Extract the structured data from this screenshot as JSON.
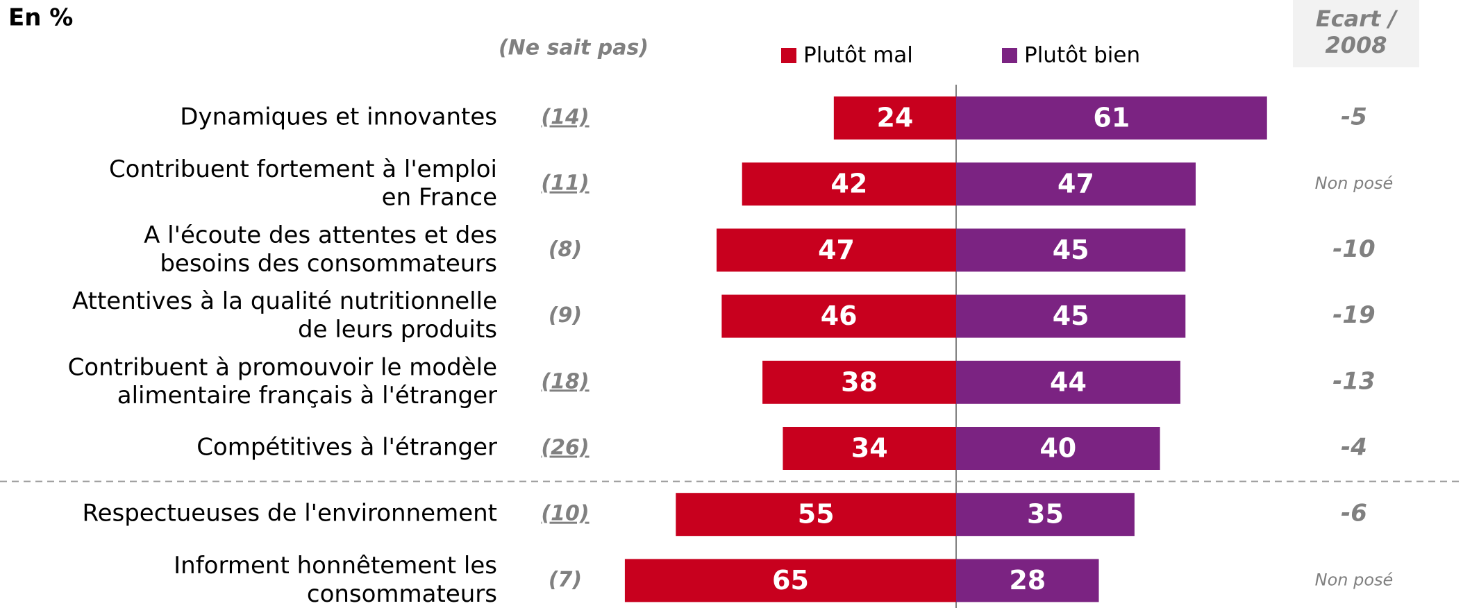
{
  "chart_data": {
    "type": "diverging_bar",
    "title": "En %",
    "dont_know_header": "(Ne sait pas)",
    "ecart_header": "Ecart /\n2008",
    "categories": [
      "Dynamiques et innovantes",
      "Contribuent fortement à l'emploi\nen France",
      "A l'écoute des attentes et des\nbesoins des consommateurs",
      "Attentives à la qualité nutritionnelle\nde leurs produits",
      "Contribuent à promouvoir le modèle\nalimentaire français à l'étranger",
      "Compétitives à l'étranger",
      "Respectueuses de l'environnement",
      "Informent honnêtement les\nconsommateurs"
    ],
    "series": [
      {
        "name": "Plutôt mal",
        "color": "#c8001e",
        "side": "left",
        "values": [
          24,
          42,
          47,
          46,
          38,
          34,
          55,
          65
        ]
      },
      {
        "name": "Plutôt bien",
        "color": "#7b2382",
        "side": "right",
        "values": [
          61,
          47,
          45,
          45,
          44,
          40,
          35,
          28
        ]
      }
    ],
    "dont_know": [
      14,
      11,
      8,
      9,
      18,
      26,
      10,
      7
    ],
    "dont_know_labels": [
      "(14)",
      "(11)",
      "(8)",
      "(9)",
      "(18)",
      "(26)",
      "(10)",
      "(7)"
    ],
    "dont_know_underlined": [
      true,
      true,
      false,
      false,
      true,
      true,
      true,
      false
    ],
    "ecart": [
      -5,
      "Non posé",
      -10,
      -19,
      -13,
      -4,
      -6,
      "Non posé"
    ]
  }
}
